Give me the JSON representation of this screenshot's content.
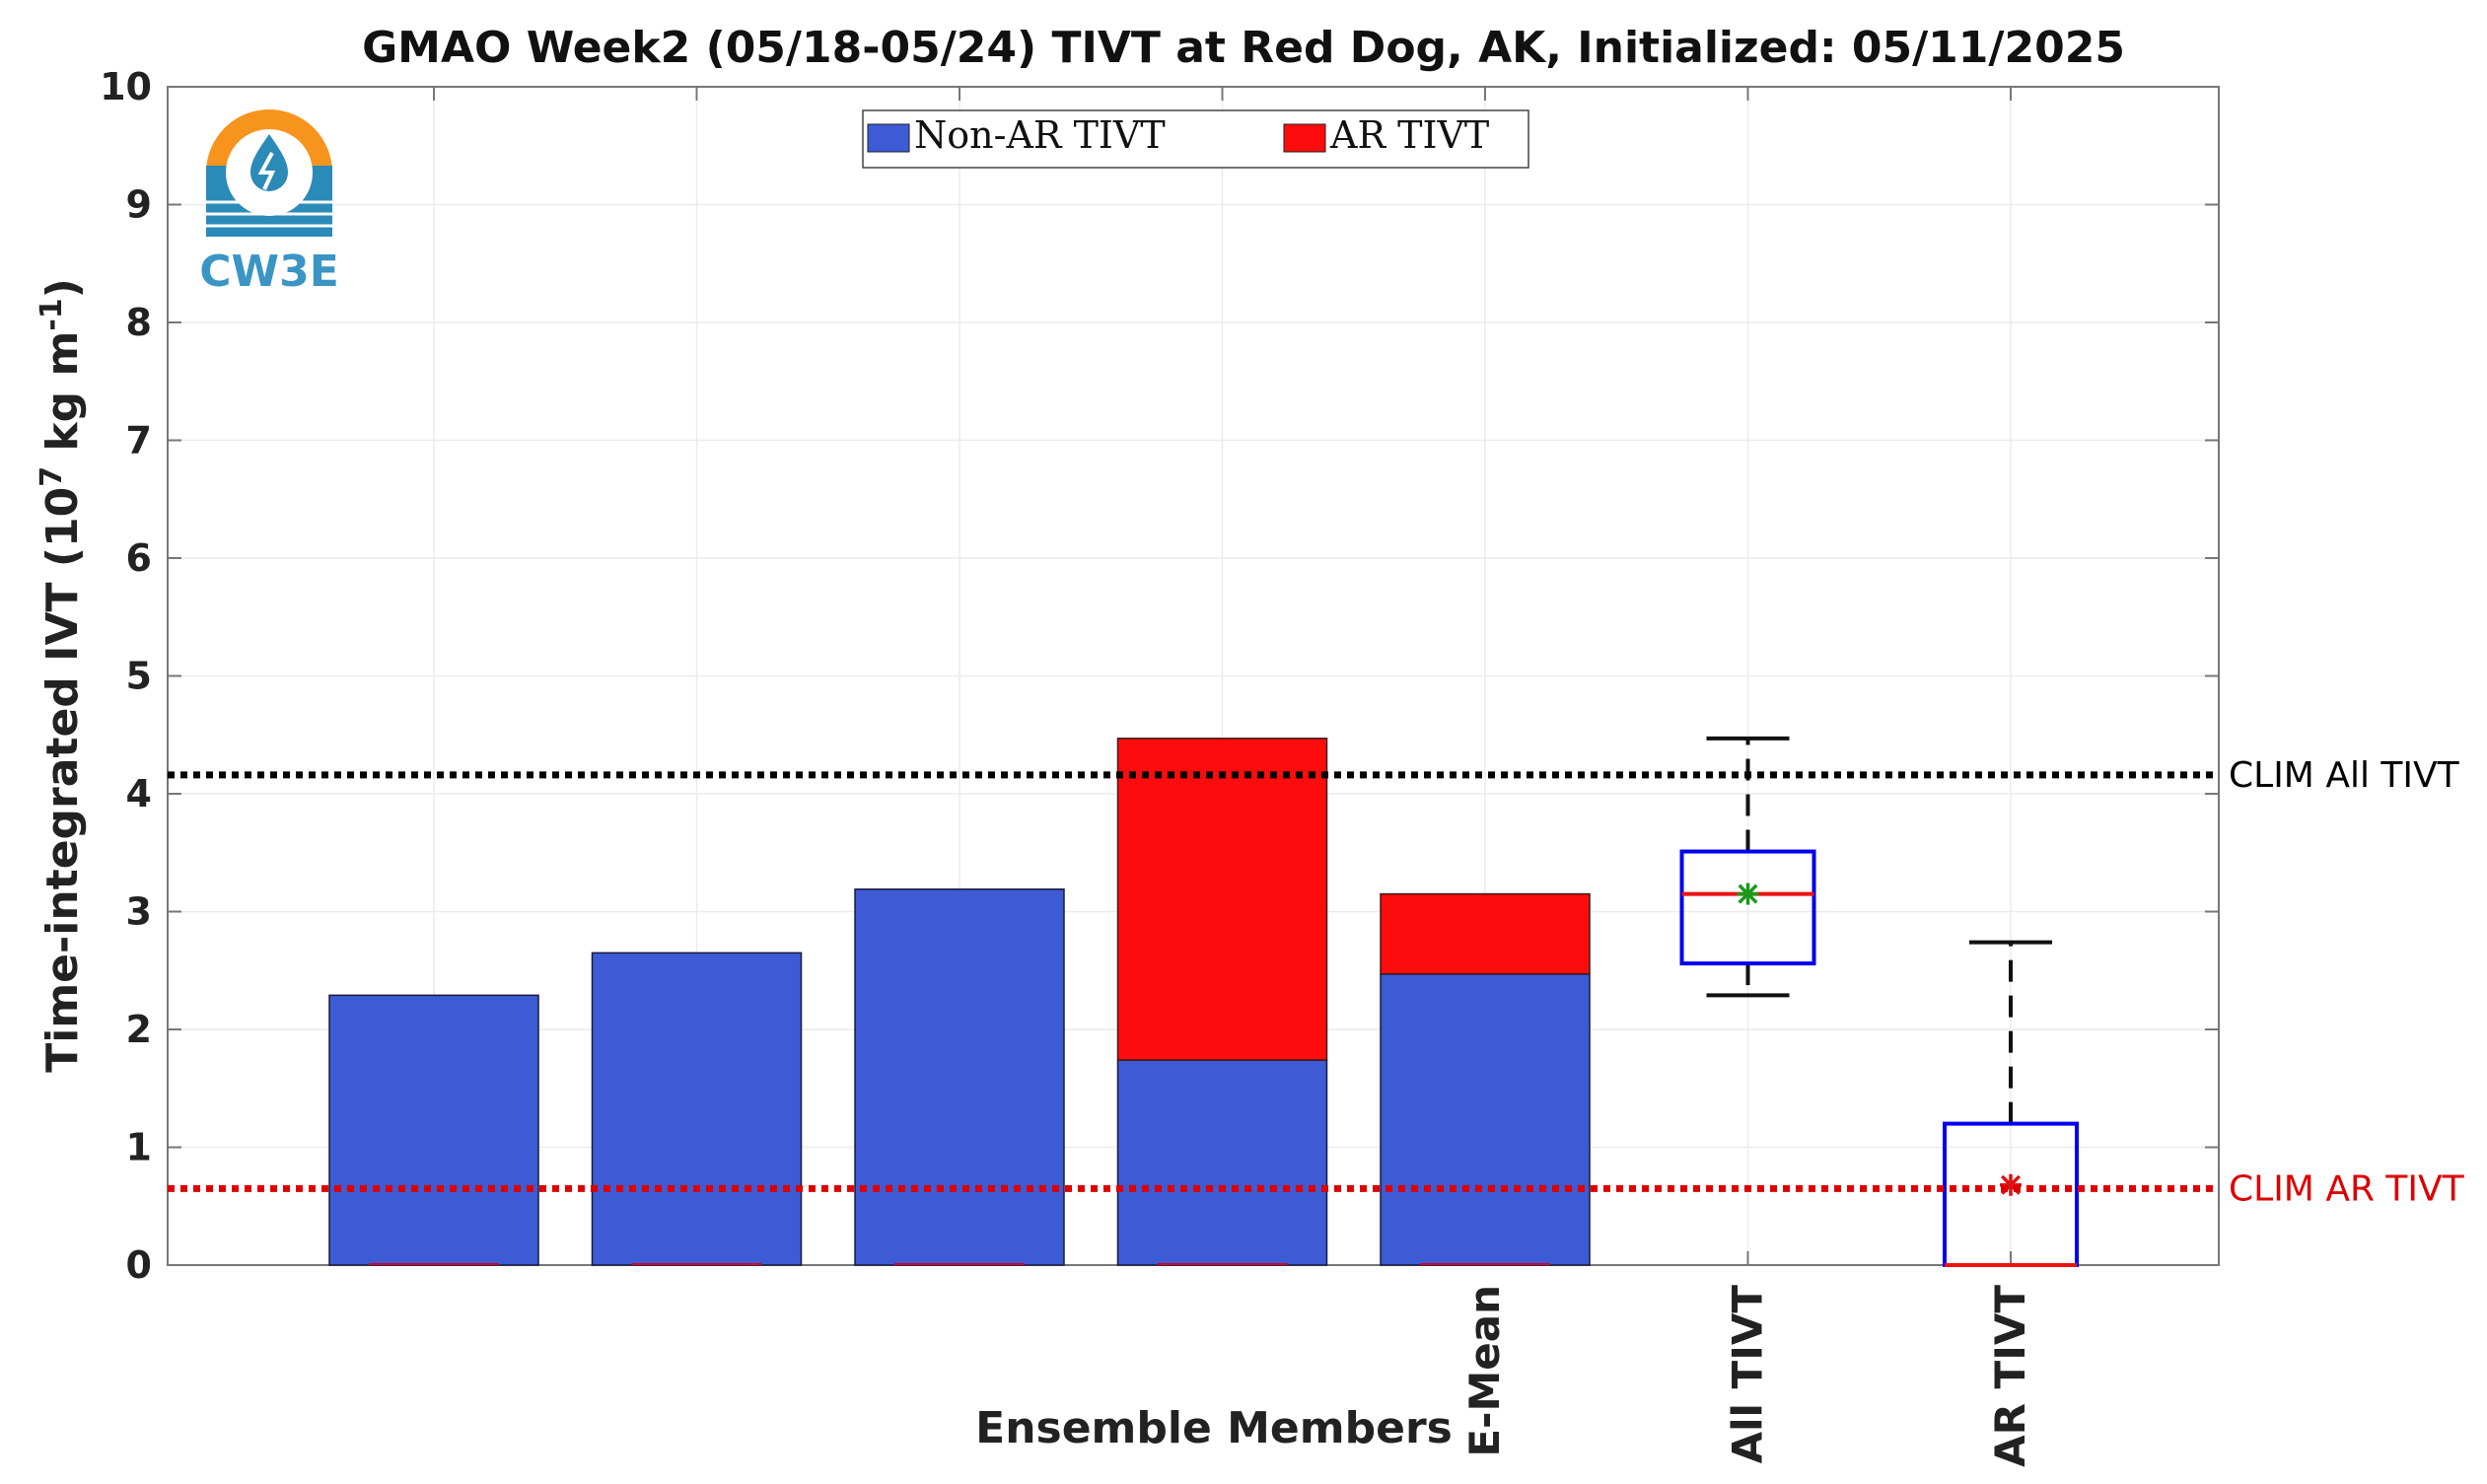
{
  "chart_data": {
    "type": "bar",
    "title": "GMAO Week2 (05/18-05/24) TIVT at Red Dog, AK, Initialized: 05/11/2025",
    "xlabel": "Ensemble Members",
    "ylabel": "Time-integrated IVT (10",
    "ylabel_sup1": "7",
    "ylabel_mid": " kg m",
    "ylabel_sup2": "-1",
    "ylabel_end": ")",
    "ylim": [
      0,
      10
    ],
    "yticks": [
      "0",
      "1",
      "2",
      "3",
      "4",
      "5",
      "6",
      "7",
      "8",
      "9",
      "10"
    ],
    "categories": [
      "",
      "",
      "",
      "",
      "E-Mean",
      "All TIVT",
      "AR TIVT"
    ],
    "stacked_bars": [
      {
        "category": "",
        "non_ar": 2.29,
        "ar": 0
      },
      {
        "category": "",
        "non_ar": 2.65,
        "ar": 0
      },
      {
        "category": "",
        "non_ar": 3.19,
        "ar": 0
      },
      {
        "category": "",
        "non_ar": 1.74,
        "ar": 2.73
      },
      {
        "category": "E-Mean",
        "non_ar": 2.47,
        "ar": 0.68
      }
    ],
    "boxplots": [
      {
        "category": "All TIVT",
        "min": 2.29,
        "q1": 2.56,
        "median": 3.15,
        "q3": 3.51,
        "max": 4.47,
        "mean": 3.15,
        "box_color": "#0000ee",
        "median_color": "#ee1111",
        "mean_color": "#1a9a1a"
      },
      {
        "category": "AR TIVT",
        "min": 0,
        "q1": 0,
        "median": 0,
        "q3": 1.2,
        "max": 2.74,
        "mean": 0.68,
        "box_color": "#0000ee",
        "median_color": "#ee1111",
        "mean_color": "#dd1111"
      }
    ],
    "reference_lines": [
      {
        "label": "CLIM All TIVT",
        "value": 4.16,
        "color": "#000000"
      },
      {
        "label": "CLIM AR TIVT",
        "value": 0.65,
        "color": "#dd0000"
      }
    ],
    "legend": {
      "position": "top-center",
      "entries": [
        {
          "label": "Non-AR TIVT",
          "color": "#3d5bd4"
        },
        {
          "label": "AR TIVT",
          "color": "#fc0c0c"
        }
      ]
    },
    "grid": true
  },
  "logo": {
    "text": "CW3E",
    "icon": "water-drop-logo-icon",
    "colors": {
      "sun": "#f7941d",
      "water": "#2a8ab8"
    }
  }
}
